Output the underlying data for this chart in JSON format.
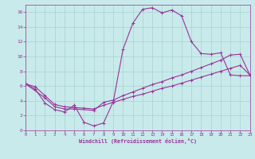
{
  "background_color": "#c8eaea",
  "line_color": "#993399",
  "xlabel": "Windchill (Refroidissement éolien,°C)",
  "xlim": [
    0,
    23
  ],
  "ylim": [
    0,
    17
  ],
  "xticks": [
    0,
    1,
    2,
    3,
    4,
    5,
    6,
    7,
    8,
    9,
    10,
    11,
    12,
    13,
    14,
    15,
    16,
    17,
    18,
    19,
    20,
    21,
    22,
    23
  ],
  "yticks": [
    0,
    2,
    4,
    6,
    8,
    10,
    12,
    14,
    16
  ],
  "grid_color": "#a0cccc",
  "line1_x": [
    0,
    1,
    2,
    3,
    4,
    5,
    6,
    7,
    8,
    9,
    10,
    11,
    12,
    13,
    14,
    15,
    16,
    17,
    18,
    19,
    20,
    21,
    22,
    23
  ],
  "line1_y": [
    6.3,
    5.6,
    3.7,
    2.8,
    2.5,
    3.4,
    1.1,
    0.6,
    1.0,
    3.9,
    11.0,
    14.5,
    16.4,
    16.6,
    15.9,
    16.3,
    15.5,
    12.0,
    10.4,
    10.3,
    10.5,
    7.5,
    7.4,
    7.4
  ],
  "line2_x": [
    0,
    2,
    3,
    4,
    5,
    7,
    8,
    9,
    10,
    11,
    12,
    13,
    14,
    15,
    16,
    17,
    18,
    19,
    20,
    21,
    22,
    23
  ],
  "line2_y": [
    6.3,
    4.4,
    3.2,
    2.9,
    2.9,
    2.7,
    3.8,
    4.1,
    4.7,
    5.2,
    5.7,
    6.2,
    6.6,
    7.1,
    7.5,
    8.0,
    8.5,
    9.0,
    9.5,
    10.2,
    10.3,
    7.5
  ],
  "line3_x": [
    0,
    1,
    2,
    3,
    4,
    5,
    6,
    7,
    8,
    9,
    10,
    11,
    12,
    13,
    14,
    15,
    16,
    17,
    18,
    19,
    20,
    21,
    22,
    23
  ],
  "line3_y": [
    6.3,
    5.9,
    4.7,
    3.5,
    3.2,
    3.1,
    3.0,
    2.9,
    3.4,
    3.8,
    4.2,
    4.6,
    4.9,
    5.3,
    5.7,
    6.0,
    6.4,
    6.8,
    7.2,
    7.6,
    8.0,
    8.4,
    8.8,
    7.5
  ]
}
